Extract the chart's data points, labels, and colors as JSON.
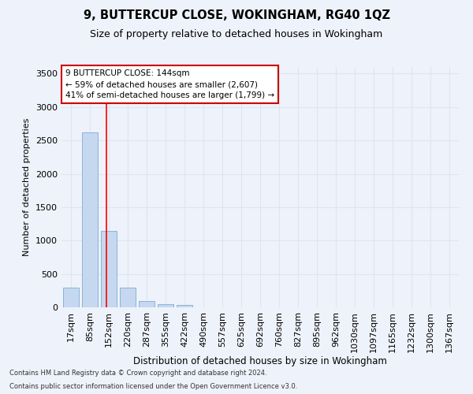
{
  "title": "9, BUTTERCUP CLOSE, WOKINGHAM, RG40 1QZ",
  "subtitle": "Size of property relative to detached houses in Wokingham",
  "xlabel": "Distribution of detached houses by size in Wokingham",
  "ylabel": "Number of detached properties",
  "bar_labels": [
    "17sqm",
    "85sqm",
    "152sqm",
    "220sqm",
    "287sqm",
    "355sqm",
    "422sqm",
    "490sqm",
    "557sqm",
    "625sqm",
    "692sqm",
    "760sqm",
    "827sqm",
    "895sqm",
    "962sqm",
    "1030sqm",
    "1097sqm",
    "1165sqm",
    "1232sqm",
    "1300sqm",
    "1367sqm"
  ],
  "bar_values": [
    290,
    2620,
    1150,
    300,
    100,
    50,
    30,
    0,
    0,
    0,
    0,
    0,
    0,
    0,
    0,
    0,
    0,
    0,
    0,
    0,
    0
  ],
  "bar_color": "#c5d8f0",
  "bar_edge_color": "#8ab4d8",
  "grid_color": "#dce6f1",
  "background_color": "#eef2fa",
  "annotation_text": "9 BUTTERCUP CLOSE: 144sqm\n← 59% of detached houses are smaller (2,607)\n41% of semi-detached houses are larger (1,799) →",
  "annotation_box_color": "#ffffff",
  "annotation_box_edge_color": "#cc0000",
  "ylim": [
    0,
    3600
  ],
  "yticks": [
    0,
    500,
    1000,
    1500,
    2000,
    2500,
    3000,
    3500
  ],
  "footer_line1": "Contains HM Land Registry data © Crown copyright and database right 2024.",
  "footer_line2": "Contains public sector information licensed under the Open Government Licence v3.0."
}
